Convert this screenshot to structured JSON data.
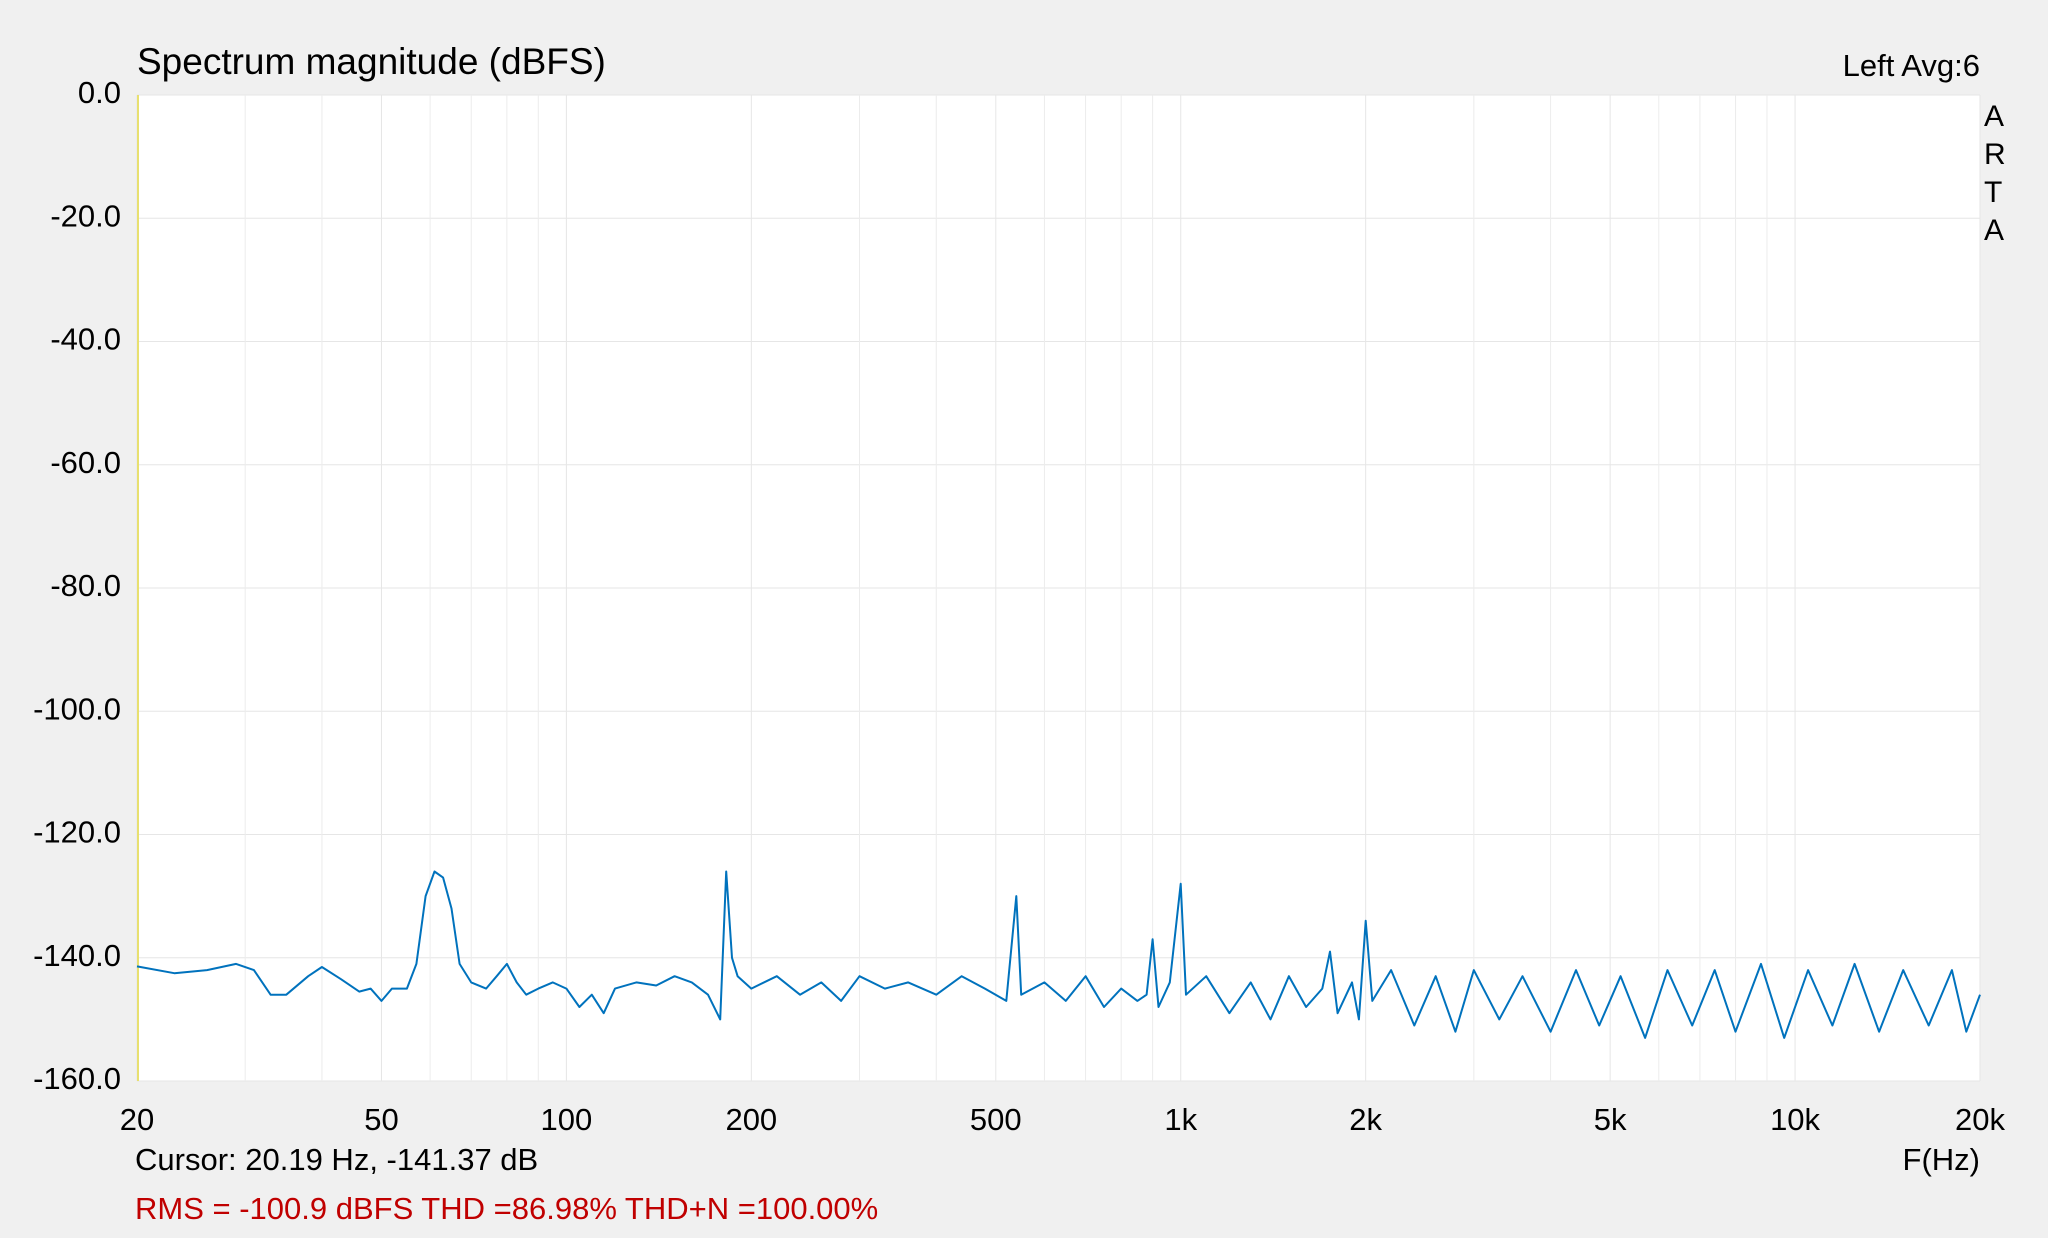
{
  "chart_data": {
    "type": "line",
    "title": "Spectrum magnitude (dBFS)",
    "channel_label": "Left  Avg:6",
    "side_label": "ARTA",
    "x_label": "F(Hz)",
    "cursor_text": "Cursor: 20.19 Hz, -141.37 dB",
    "stats_text": "RMS = -100.9 dBFS THD =86.98% THD+N =100.00%",
    "x_log": true,
    "grid": true,
    "xlim": [
      20,
      20000
    ],
    "ylim": [
      -160,
      0
    ],
    "xticks": [
      20,
      50,
      100,
      200,
      500,
      {
        "value": 1000,
        "label": "1k"
      },
      {
        "value": 2000,
        "label": "2k"
      },
      {
        "value": 5000,
        "label": "5k"
      },
      {
        "value": 10000,
        "label": "10k"
      },
      {
        "value": 20000,
        "label": "20k"
      }
    ],
    "minor_xticks": [
      30,
      40,
      60,
      70,
      80,
      90,
      300,
      400,
      600,
      700,
      800,
      900,
      3000,
      4000,
      6000,
      7000,
      8000,
      9000
    ],
    "yticks": [
      {
        "value": 0,
        "label": "0.0"
      },
      {
        "value": -20,
        "label": "-20.0"
      },
      {
        "value": -40,
        "label": "-40.0"
      },
      {
        "value": -60,
        "label": "-60.0"
      },
      {
        "value": -80,
        "label": "-80.0"
      },
      {
        "value": -100,
        "label": "-100.0"
      },
      {
        "value": -120,
        "label": "-120.0"
      },
      {
        "value": -140,
        "label": "-140.0"
      },
      {
        "value": -160,
        "label": "-160.0"
      }
    ],
    "series": [
      {
        "name": "Left",
        "color": "#0072bd",
        "x": [
          20,
          23,
          26,
          29,
          31,
          33,
          35,
          38,
          40,
          43,
          46,
          48,
          50,
          52,
          55,
          57,
          59,
          61,
          63,
          65,
          67,
          70,
          74,
          77,
          80,
          83,
          86,
          90,
          95,
          100,
          105,
          110,
          115,
          120,
          130,
          140,
          150,
          160,
          170,
          178,
          182,
          186,
          190,
          200,
          220,
          240,
          260,
          280,
          300,
          330,
          360,
          400,
          440,
          480,
          520,
          540,
          550,
          600,
          650,
          700,
          750,
          800,
          850,
          880,
          900,
          920,
          960,
          1000,
          1020,
          1100,
          1200,
          1300,
          1400,
          1500,
          1600,
          1700,
          1750,
          1800,
          1900,
          1950,
          2000,
          2050,
          2200,
          2400,
          2600,
          2800,
          3000,
          3300,
          3600,
          4000,
          4400,
          4800,
          5200,
          5700,
          6200,
          6800,
          7400,
          8000,
          8800,
          9600,
          10500,
          11500,
          12500,
          13700,
          15000,
          16500,
          18000,
          19000,
          20000
        ],
        "values": [
          -141.4,
          -142.5,
          -142,
          -141,
          -142,
          -146,
          -146,
          -143,
          -141.5,
          -143.5,
          -145.5,
          -145,
          -147,
          -145,
          -145,
          -141,
          -130,
          -126,
          -127,
          -132,
          -141,
          -144,
          -145,
          -143,
          -141,
          -144,
          -146,
          -145,
          -144,
          -145,
          -148,
          -146,
          -149,
          -145,
          -144,
          -144.5,
          -143,
          -144,
          -146,
          -150,
          -126,
          -140,
          -143,
          -145,
          -143,
          -146,
          -144,
          -147,
          -143,
          -145,
          -144,
          -146,
          -143,
          -145,
          -147,
          -130,
          -146,
          -144,
          -147,
          -143,
          -148,
          -145,
          -147,
          -146,
          -137,
          -148,
          -144,
          -128,
          -146,
          -143,
          -149,
          -144,
          -150,
          -143,
          -148,
          -145,
          -139,
          -149,
          -144,
          -150,
          -134,
          -147,
          -142,
          -151,
          -143,
          -152,
          -142,
          -150,
          -143,
          -152,
          -142,
          -151,
          -143,
          -153,
          -142,
          -151,
          -142,
          -152,
          -141,
          -153,
          -142,
          -151,
          -141,
          -152,
          -142,
          -151,
          -142,
          -152,
          -146
        ]
      }
    ]
  }
}
